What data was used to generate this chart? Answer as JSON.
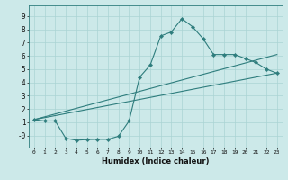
{
  "xlabel": "Humidex (Indice chaleur)",
  "ylabel": "",
  "xlim": [
    -0.5,
    23.5
  ],
  "ylim": [
    -0.9,
    9.8
  ],
  "xticks": [
    0,
    1,
    2,
    3,
    4,
    5,
    6,
    7,
    8,
    9,
    10,
    11,
    12,
    13,
    14,
    15,
    16,
    17,
    18,
    19,
    20,
    21,
    22,
    23
  ],
  "yticks": [
    0,
    1,
    2,
    3,
    4,
    5,
    6,
    7,
    8,
    9
  ],
  "ytick_labels": [
    "-0",
    "1",
    "2",
    "3",
    "4",
    "5",
    "6",
    "7",
    "8",
    "9"
  ],
  "bg_color": "#cce9e9",
  "line_color": "#2e7d7d",
  "line1_x": [
    0,
    1,
    2,
    3,
    4,
    5,
    6,
    7,
    8,
    9,
    10,
    11,
    12,
    13,
    14,
    15,
    16,
    17,
    18,
    19,
    20,
    21,
    22,
    23
  ],
  "line1_y": [
    1.2,
    1.1,
    1.1,
    -0.2,
    -0.35,
    -0.3,
    -0.28,
    -0.28,
    -0.05,
    1.1,
    4.4,
    5.3,
    7.5,
    7.8,
    8.8,
    8.2,
    7.3,
    6.1,
    6.1,
    6.1,
    5.8,
    5.5,
    5.0,
    4.7
  ],
  "line2_x": [
    0,
    23
  ],
  "line2_y": [
    1.2,
    6.1
  ],
  "line3_x": [
    0,
    23
  ],
  "line3_y": [
    1.2,
    4.7
  ],
  "grid_color": "#aad4d4",
  "marker": "D",
  "marker_size": 2.2,
  "line_width": 0.8
}
